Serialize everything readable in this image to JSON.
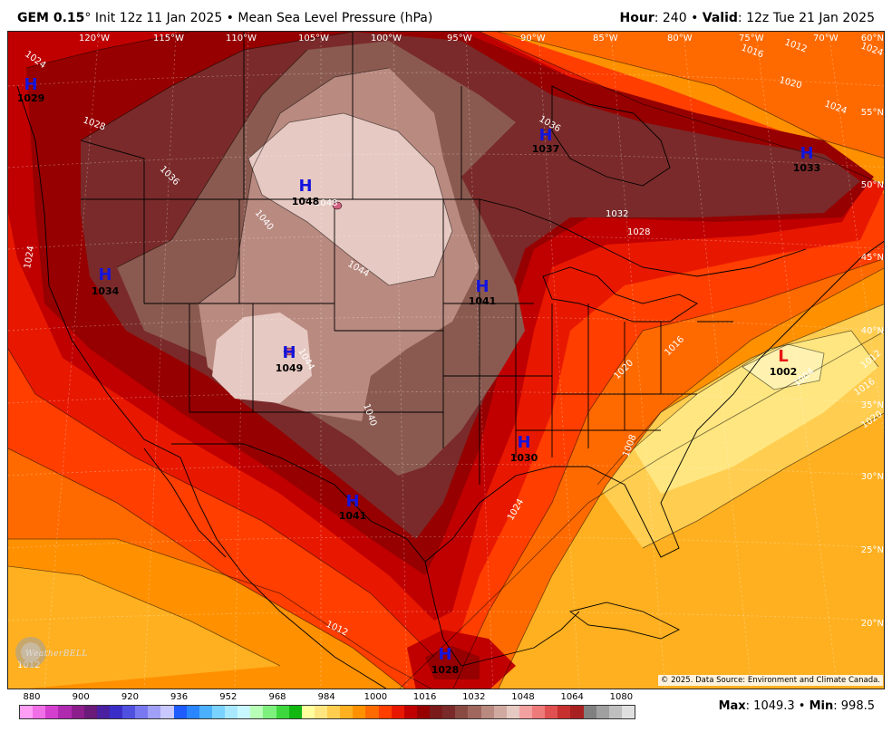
{
  "header": {
    "model": "GEM 0.15",
    "degree": "°",
    "init": " Init 12z 11 Jan 2025 • Mean Sea Level Pressure (hPa)",
    "hour_label": "Hour",
    "hour_value": ": 240 • ",
    "valid_label": "Valid",
    "valid_value": ": 12z Tue 21 Jan 2025"
  },
  "credit": "© 2025. Data Source: Environment and Climate Canada.",
  "logo": "WeatherBELL",
  "stats": {
    "max_label": "Max",
    "max_value": ": 1049.3 • ",
    "min_label": "Min",
    "min_value": ": 998.5"
  },
  "colorbar": {
    "ticks": [
      "880",
      "900",
      "920",
      "936",
      "952",
      "968",
      "984",
      "1000",
      "1016",
      "1032",
      "1048",
      "1064",
      "1080"
    ],
    "colors": [
      "#ff9ef4",
      "#f06ee6",
      "#d43fd0",
      "#b02ab0",
      "#8c1e8c",
      "#6a1a78",
      "#4a1fa0",
      "#3a2ec8",
      "#4f4fe0",
      "#7878f0",
      "#a0a0f8",
      "#c8c8ff",
      "#1e5cff",
      "#2a86ff",
      "#4bb0ff",
      "#7ad2ff",
      "#a8e8ff",
      "#c8f8ff",
      "#b8ffb8",
      "#7ef07e",
      "#3ed83e",
      "#12b812",
      "#ffff9e",
      "#ffe680",
      "#ffcd50",
      "#ffb020",
      "#ff9000",
      "#ff6a00",
      "#ff3e00",
      "#e81800",
      "#c00000",
      "#960000",
      "#7a1a1a",
      "#7a2a2a",
      "#8a4a44",
      "#a0675e",
      "#b98a80",
      "#d0aaa0",
      "#e6c9c2",
      "#f3a0a0",
      "#ee7a7a",
      "#e05050",
      "#c83030",
      "#a82020",
      "#808080",
      "#a0a0a0",
      "#bfbfbf",
      "#e0e0e0"
    ]
  },
  "map": {
    "longitudes": [
      "120°W",
      "115°W",
      "110°W",
      "105°W",
      "100°W",
      "95°W",
      "90°W",
      "85°W",
      "80°W",
      "75°W",
      "70°W"
    ],
    "latitudes": [
      "60°N",
      "55°N",
      "50°N",
      "45°N",
      "40°N",
      "35°N",
      "30°N",
      "25°N",
      "20°N"
    ],
    "centers": [
      {
        "type": "H",
        "value": "1029"
      },
      {
        "type": "H",
        "value": "1037"
      },
      {
        "type": "H",
        "value": "1033"
      },
      {
        "type": "H",
        "value": "1048"
      },
      {
        "type": "H",
        "value": "1034"
      },
      {
        "type": "H",
        "value": "1041"
      },
      {
        "type": "H",
        "value": "1049"
      },
      {
        "type": "L",
        "value": "1002"
      },
      {
        "type": "H",
        "value": "1030"
      },
      {
        "type": "H",
        "value": "1041"
      },
      {
        "type": "H",
        "value": "1028"
      }
    ],
    "contour_labels": [
      "1024",
      "1028",
      "1036",
      "1040",
      "1048",
      "1044",
      "1044",
      "1040",
      "1024",
      "1036",
      "1032",
      "1028",
      "1016",
      "1012",
      "1020",
      "1024",
      "1016",
      "1004",
      "1012",
      "1016",
      "1020",
      "1020",
      "1008",
      "1024",
      "1012",
      "1024",
      "1012"
    ],
    "colors": {
      "center_high": "#1414dc",
      "center_low": "#e81414",
      "p1000": "#ffe680",
      "p1004": "#ffd75a",
      "p1008": "#ffcd50",
      "p1012": "#ffb020",
      "p1016": "#ff9000",
      "p1020": "#ff6a00",
      "p1024": "#ff3e00",
      "p1028": "#e81800",
      "p1032": "#c00000",
      "p1036": "#960000",
      "p1040": "#7a2a2a",
      "p1044": "#a0675e",
      "p1048": "#d0aaa0",
      "p1052": "#e6c9c2"
    }
  }
}
